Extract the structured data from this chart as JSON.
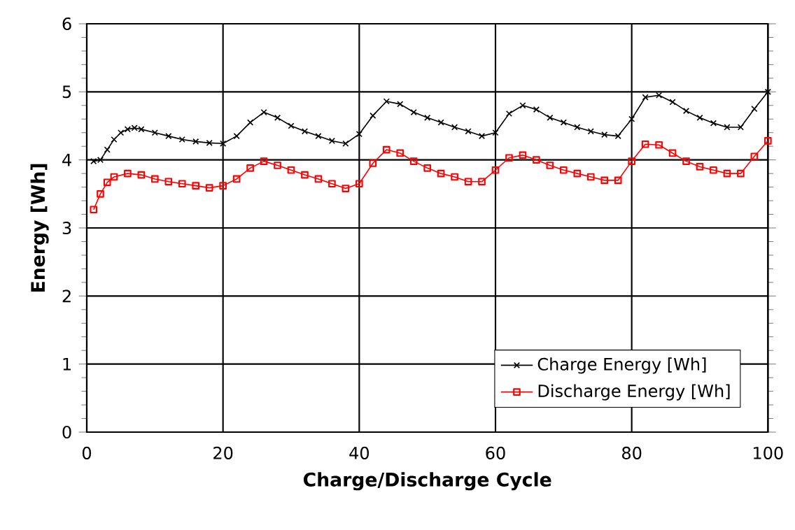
{
  "chart_data": {
    "type": "line",
    "xlabel": "Charge/Discharge Cycle",
    "ylabel": "Energy [Wh]",
    "xlim": [
      0,
      100
    ],
    "ylim": [
      0,
      6
    ],
    "xticks": [
      0,
      20,
      40,
      60,
      80,
      100
    ],
    "yticks": [
      0,
      1,
      2,
      3,
      4,
      5,
      6
    ],
    "grid": true,
    "legend": "bottom right",
    "line_style": "solid",
    "series": [
      {
        "name": "Charge Energy [Wh]",
        "color": "#000000",
        "marker": "cross",
        "x": [
          1,
          2,
          3,
          4,
          5,
          6,
          7,
          8,
          10,
          12,
          14,
          16,
          18,
          20,
          22,
          24,
          26,
          28,
          30,
          32,
          34,
          36,
          38,
          40,
          42,
          44,
          46,
          48,
          50,
          52,
          54,
          56,
          58,
          60,
          62,
          64,
          66,
          68,
          70,
          72,
          74,
          76,
          78,
          80,
          82,
          84,
          86,
          88,
          90,
          92,
          94,
          96,
          98,
          100
        ],
        "values": [
          3.98,
          4.0,
          4.15,
          4.3,
          4.4,
          4.45,
          4.47,
          4.45,
          4.4,
          4.35,
          4.3,
          4.27,
          4.25,
          4.24,
          4.35,
          4.55,
          4.7,
          4.62,
          4.5,
          4.42,
          4.35,
          4.28,
          4.24,
          4.38,
          4.65,
          4.86,
          4.82,
          4.7,
          4.62,
          4.55,
          4.48,
          4.42,
          4.35,
          4.4,
          4.68,
          4.8,
          4.74,
          4.62,
          4.55,
          4.48,
          4.42,
          4.37,
          4.35,
          4.6,
          4.92,
          4.95,
          4.85,
          4.72,
          4.62,
          4.54,
          4.48,
          4.48,
          4.75,
          5.0
        ]
      },
      {
        "name": "Discharge Energy [Wh]",
        "color": "#ff0000",
        "marker": "square",
        "x": [
          1,
          2,
          3,
          4,
          6,
          8,
          10,
          12,
          14,
          16,
          18,
          20,
          22,
          24,
          26,
          28,
          30,
          32,
          34,
          36,
          38,
          40,
          42,
          44,
          46,
          48,
          50,
          52,
          54,
          56,
          58,
          60,
          62,
          64,
          66,
          68,
          70,
          72,
          74,
          76,
          78,
          80,
          82,
          84,
          86,
          88,
          90,
          92,
          94,
          96,
          98,
          100
        ],
        "values": [
          3.27,
          3.5,
          3.67,
          3.75,
          3.8,
          3.78,
          3.72,
          3.68,
          3.65,
          3.62,
          3.59,
          3.62,
          3.72,
          3.88,
          3.98,
          3.92,
          3.85,
          3.78,
          3.72,
          3.65,
          3.58,
          3.65,
          3.95,
          4.15,
          4.1,
          3.98,
          3.88,
          3.8,
          3.75,
          3.68,
          3.68,
          3.85,
          4.03,
          4.07,
          4.0,
          3.92,
          3.85,
          3.8,
          3.75,
          3.7,
          3.7,
          3.98,
          4.23,
          4.22,
          4.1,
          3.98,
          3.9,
          3.85,
          3.8,
          3.8,
          4.05,
          4.28
        ]
      }
    ]
  }
}
